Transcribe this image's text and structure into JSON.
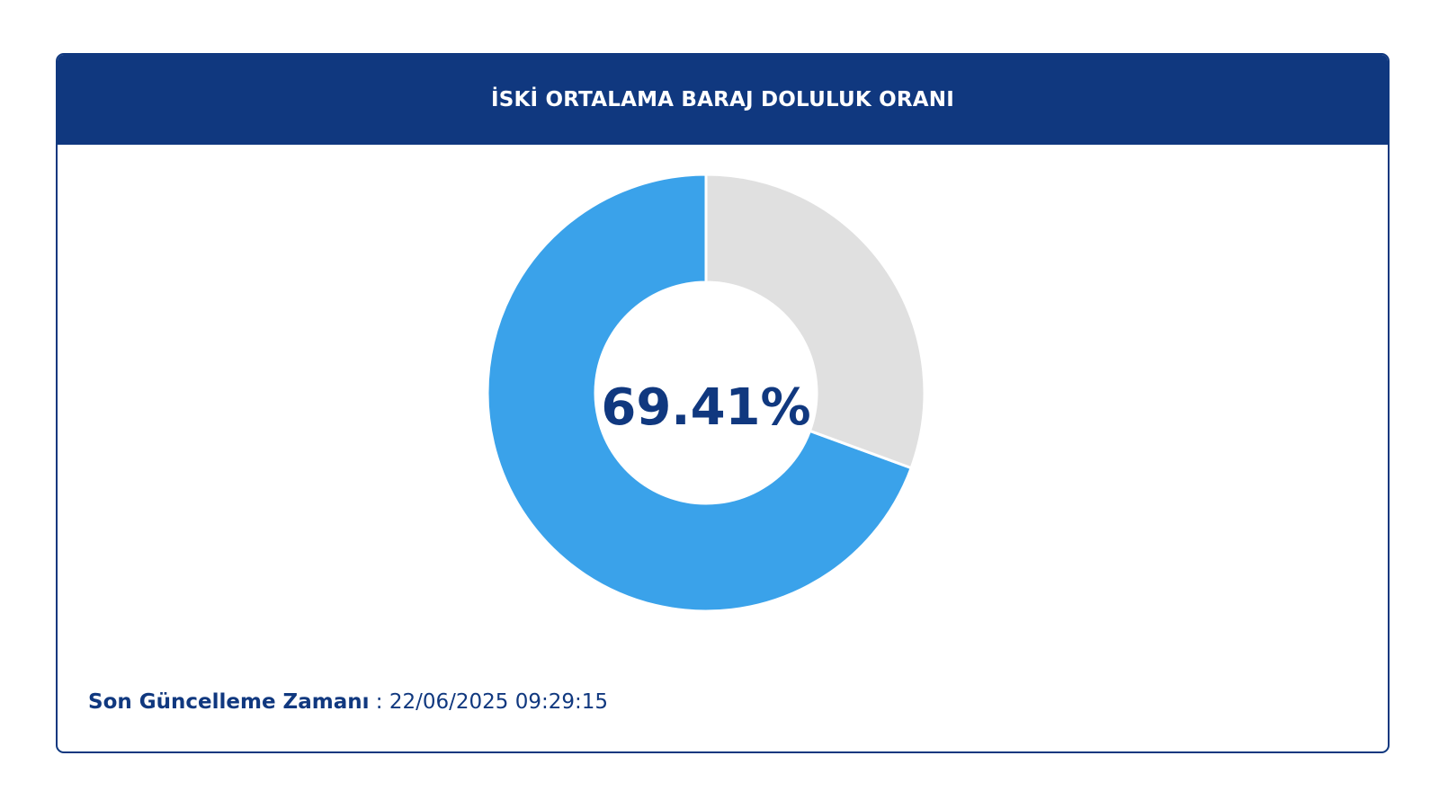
{
  "card": {
    "title": "İSKİ ORTALAMA BARAJ DOLULUK ORANI"
  },
  "chart_data": {
    "type": "pie",
    "variant": "donut",
    "center_label": "69.41%",
    "slices": [
      {
        "value": 69.41,
        "color": "#3aa2ea"
      },
      {
        "value": 30.59,
        "color": "#e0e0e0"
      }
    ]
  },
  "footer": {
    "label": "Son Güncelleme Zamanı",
    "separator": " : ",
    "value": "22/06/2025 09:29:15"
  },
  "colors": {
    "primary": "#10387f",
    "filled": "#3aa2ea",
    "empty": "#e0e0e0"
  }
}
